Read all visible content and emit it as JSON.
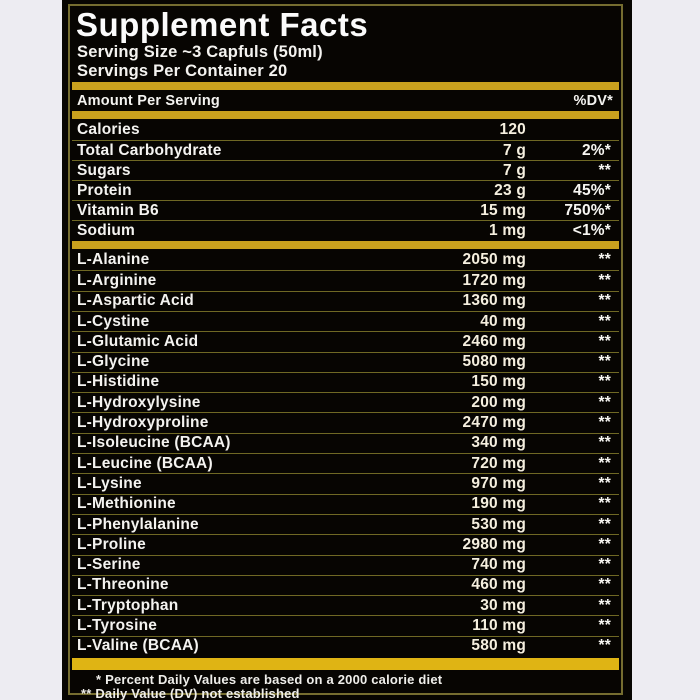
{
  "colors": {
    "page_bg": "#edecf2",
    "label_bg": "#070502",
    "frame": "#756d30",
    "gold": "#c9a11e",
    "gold_bright": "#dfb414",
    "rule": "#6f6824"
  },
  "label": {
    "title": "Supplement Facts",
    "serving_size": "Serving Size ~3 Capfuls (50ml)",
    "servings_per_container": "Servings Per Container 20",
    "header": {
      "amount_per_serving": "Amount Per Serving",
      "dv": "%DV*"
    },
    "macros": [
      {
        "name": "Calories",
        "amount": "120",
        "dv": ""
      },
      {
        "name": "Total Carbohydrate",
        "amount": "7 g",
        "dv": "2%*"
      },
      {
        "name": "Sugars",
        "amount": "7 g",
        "dv": "**"
      },
      {
        "name": "Protein",
        "amount": "23 g",
        "dv": "45%*"
      },
      {
        "name": "Vitamin B6",
        "amount": "15 mg",
        "dv": "750%*"
      },
      {
        "name": "Sodium",
        "amount": "1 mg",
        "dv": "<1%*"
      }
    ],
    "aminos": [
      {
        "name": "L-Alanine",
        "amount": "2050 mg",
        "dv": "**"
      },
      {
        "name": "L-Arginine",
        "amount": "1720 mg",
        "dv": "**"
      },
      {
        "name": "L-Aspartic Acid",
        "amount": "1360 mg",
        "dv": "**"
      },
      {
        "name": "L-Cystine",
        "amount": "40 mg",
        "dv": "**"
      },
      {
        "name": "L-Glutamic Acid",
        "amount": "2460 mg",
        "dv": "**"
      },
      {
        "name": "L-Glycine",
        "amount": "5080 mg",
        "dv": "**"
      },
      {
        "name": "L-Histidine",
        "amount": "150 mg",
        "dv": "**"
      },
      {
        "name": "L-Hydroxylysine",
        "amount": "200 mg",
        "dv": "**"
      },
      {
        "name": "L-Hydroxyproline",
        "amount": "2470 mg",
        "dv": "**"
      },
      {
        "name": "L-Isoleucine (BCAA)",
        "amount": "340 mg",
        "dv": "**"
      },
      {
        "name": "L-Leucine (BCAA)",
        "amount": "720 mg",
        "dv": "**"
      },
      {
        "name": "L-Lysine",
        "amount": "970 mg",
        "dv": "**"
      },
      {
        "name": "L-Methionine",
        "amount": "190 mg",
        "dv": "**"
      },
      {
        "name": "L-Phenylalanine",
        "amount": "530 mg",
        "dv": "**"
      },
      {
        "name": "L-Proline",
        "amount": "2980 mg",
        "dv": "**"
      },
      {
        "name": "L-Serine",
        "amount": "740 mg",
        "dv": "**"
      },
      {
        "name": "L-Threonine",
        "amount": "460 mg",
        "dv": "**"
      },
      {
        "name": "L-Tryptophan",
        "amount": "30 mg",
        "dv": "**"
      },
      {
        "name": "L-Tyrosine",
        "amount": "110 mg",
        "dv": "**"
      },
      {
        "name": "L-Valine (BCAA)",
        "amount": "580 mg",
        "dv": "**"
      }
    ],
    "footnotes": {
      "daily_values": "* Percent Daily Values are based on a 2000 calorie diet",
      "not_established": "** Daily Value (DV) not established"
    }
  }
}
